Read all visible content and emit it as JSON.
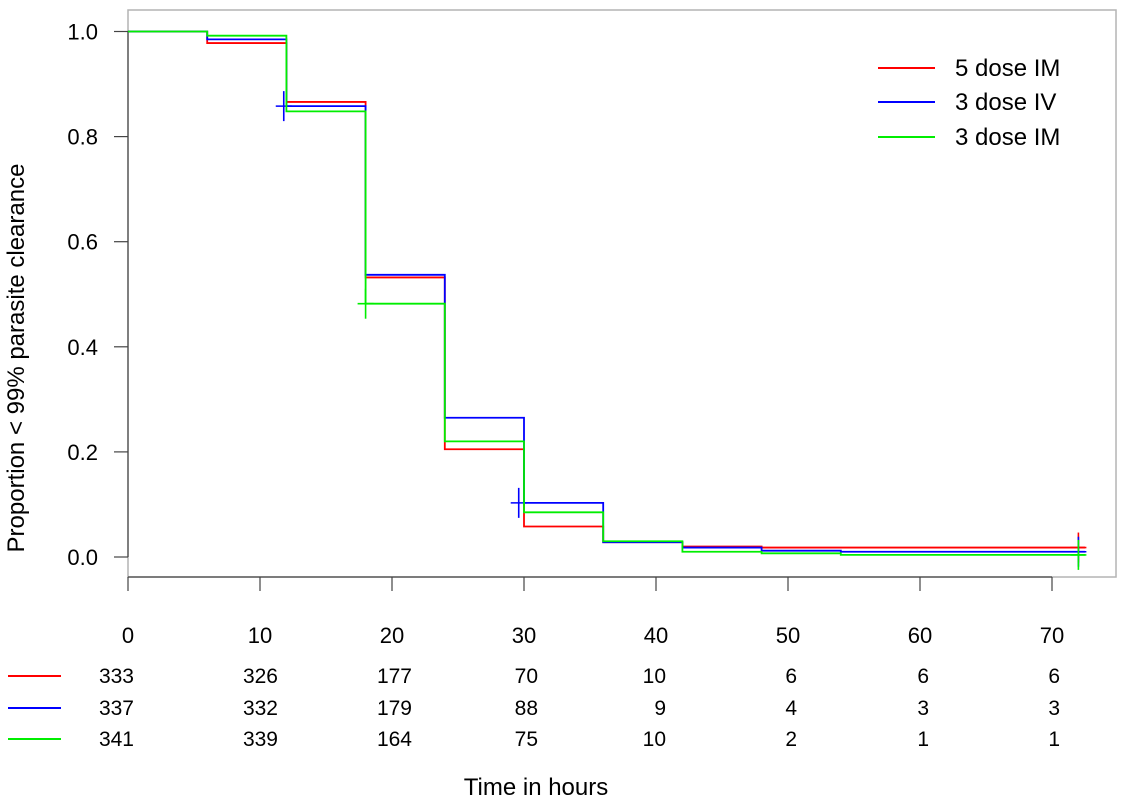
{
  "chart_data": {
    "type": "line",
    "step": true,
    "xlabel": "Time in hours",
    "ylabel": "Proportion < 99% parasite clearance",
    "xlim": [
      0,
      73
    ],
    "ylim": [
      -0.04,
      1.04
    ],
    "x_ticks": [
      0,
      10,
      20,
      30,
      40,
      50,
      60,
      70
    ],
    "y_ticks": [
      0.0,
      0.2,
      0.4,
      0.6,
      0.8,
      1.0
    ],
    "x_tick_labels": [
      "0",
      "10",
      "20",
      "30",
      "40",
      "50",
      "60",
      "70"
    ],
    "y_tick_labels": [
      "0.0",
      "0.2",
      "0.4",
      "0.6",
      "0.8",
      "1.0"
    ],
    "legend_position": "top-right",
    "grid": false,
    "series": [
      {
        "name": "5 dose IM",
        "color": "#ff0000",
        "steps": [
          [
            0,
            1.0
          ],
          [
            6,
            0.978
          ],
          [
            12,
            0.866
          ],
          [
            18,
            0.532
          ],
          [
            24,
            0.205
          ],
          [
            30,
            0.058
          ],
          [
            36,
            0.028
          ],
          [
            42,
            0.02
          ],
          [
            48,
            0.018
          ],
          [
            72.5,
            0.018
          ]
        ],
        "censored": [
          [
            72,
            0.018
          ]
        ]
      },
      {
        "name": "3 dose IV",
        "color": "#0000ff",
        "steps": [
          [
            0,
            1.0
          ],
          [
            6,
            0.985
          ],
          [
            12,
            0.858
          ],
          [
            18,
            0.537
          ],
          [
            24,
            0.265
          ],
          [
            30,
            0.103
          ],
          [
            36,
            0.028
          ],
          [
            42,
            0.018
          ],
          [
            48,
            0.012
          ],
          [
            54,
            0.01
          ],
          [
            72.5,
            0.01
          ]
        ],
        "censored": [
          [
            11.8,
            0.858
          ],
          [
            29.6,
            0.103
          ],
          [
            72,
            0.01
          ]
        ]
      },
      {
        "name": "3 dose IM",
        "color": "#00ee00",
        "steps": [
          [
            0,
            1.0
          ],
          [
            6,
            0.992
          ],
          [
            12,
            0.848
          ],
          [
            18,
            0.482
          ],
          [
            24,
            0.22
          ],
          [
            30,
            0.085
          ],
          [
            36,
            0.03
          ],
          [
            42,
            0.01
          ],
          [
            48,
            0.007
          ],
          [
            54,
            0.004
          ],
          [
            72.5,
            0.004
          ]
        ],
        "censored": [
          [
            18,
            0.482
          ],
          [
            72,
            0.004
          ]
        ]
      }
    ],
    "risk_table": {
      "rows": [
        {
          "color": "#ff0000",
          "counts": [
            "333",
            "326",
            "177",
            "70",
            "10",
            "6",
            "6",
            "6"
          ]
        },
        {
          "color": "#0000ff",
          "counts": [
            "337",
            "332",
            "179",
            "88",
            "9",
            "4",
            "3",
            "3"
          ]
        },
        {
          "color": "#00ee00",
          "counts": [
            "341",
            "339",
            "164",
            "75",
            "10",
            "2",
            "1",
            "1"
          ]
        }
      ]
    }
  }
}
